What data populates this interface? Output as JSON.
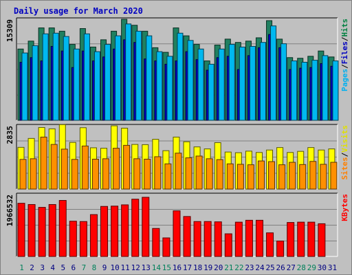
{
  "chart_data": {
    "type": "bar",
    "title": "Daily usage for March 2020",
    "categories": [
      "1",
      "2",
      "3",
      "4",
      "5",
      "6",
      "7",
      "8",
      "9",
      "10",
      "11",
      "12",
      "13",
      "14",
      "15",
      "16",
      "17",
      "18",
      "19",
      "20",
      "21",
      "22",
      "23",
      "24",
      "25",
      "26",
      "27",
      "28",
      "29",
      "30",
      "31"
    ],
    "weekend_days": [
      "1",
      "7",
      "8",
      "14",
      "15",
      "21",
      "22",
      "28",
      "29"
    ],
    "panels": [
      {
        "max_label": "15309",
        "ylim": [
          0,
          15309
        ],
        "legend": [
          {
            "text": "Pages",
            "color": "#00b0f0"
          },
          {
            "text": "/",
            "color": "#000000"
          },
          {
            "text": "Files",
            "color": "#0000c0"
          },
          {
            "text": "/",
            "color": "#000000"
          },
          {
            "text": "Hits",
            "color": "#008040"
          }
        ],
        "series": [
          {
            "name": "Hits",
            "color": "#208060",
            "values": [
              10800,
              12000,
              14000,
              14000,
              13500,
              11500,
              13900,
              11100,
              12200,
              13500,
              15309,
              14400,
              13500,
              11000,
              10300,
              14000,
              12800,
              11500,
              9000,
              11400,
              12300,
              11800,
              12000,
              12500,
              15100,
              12300,
              9500,
              9400,
              9700,
              10500,
              9600
            ]
          },
          {
            "name": "Files",
            "color": "#0000c0",
            "values": [
              8800,
              9500,
              9000,
              11200,
              10500,
              8000,
              10500,
              9000,
              9600,
              10800,
              12200,
              11800,
              9300,
              9000,
              8500,
              9000,
              10400,
              9200,
              7600,
              9500,
              9700,
              7700,
              9800,
              11000,
              13000,
              11000,
              7700,
              7900,
              8000,
              8600,
              8200
            ]
          },
          {
            "name": "Pages",
            "color": "#00b8f0",
            "values": [
              10200,
              11300,
              13100,
              13200,
              12700,
              10800,
              13100,
              10400,
              11500,
              12800,
              14600,
              13500,
              12800,
              10400,
              9700,
              13200,
              12100,
              10800,
              8500,
              10800,
              11500,
              11100,
              11200,
              11800,
              14300,
              11600,
              9000,
              8800,
              9100,
              9800,
              9000
            ]
          }
        ]
      },
      {
        "max_label": "2835",
        "ylim": [
          0,
          2835
        ],
        "legend": [
          {
            "text": "Sites",
            "color": "#ff8000"
          },
          {
            "text": "/",
            "color": "#000000"
          },
          {
            "text": "Visits",
            "color": "#e0e000"
          }
        ],
        "series": [
          {
            "name": "Visits",
            "color": "#ffff00",
            "values": [
              1870,
              2270,
              2760,
              2700,
              2890,
              2090,
              2750,
              1850,
              1830,
              2835,
              2730,
              2000,
              1990,
              2230,
              1720,
              2330,
              2120,
              1890,
              1800,
              2080,
              1660,
              1630,
              1700,
              1640,
              1750,
              1860,
              1640,
              1690,
              1860,
              1750,
              1800
            ]
          },
          {
            "name": "Sites",
            "color": "#ff9000",
            "values": [
              1330,
              1360,
              2330,
              2000,
              1790,
              1330,
              1930,
              1340,
              1360,
              1830,
              1960,
              1360,
              1340,
              1450,
              1130,
              1610,
              1400,
              1480,
              1360,
              1320,
              1130,
              1110,
              1090,
              1260,
              1230,
              1090,
              1200,
              1100,
              1240,
              1110,
              1200
            ]
          }
        ]
      },
      {
        "max_label": "1966532",
        "ylim": [
          0,
          1966532
        ],
        "legend": [
          {
            "text": "KBytes",
            "color": "#ff0000"
          }
        ],
        "series": [
          {
            "name": "KBytes",
            "color": "#ff0000",
            "values": [
              1690000,
              1650000,
              1560000,
              1650000,
              1780000,
              1120000,
              1110000,
              1330000,
              1590000,
              1600000,
              1640000,
              1820000,
              1880000,
              890000,
              590000,
              1450000,
              1270000,
              1110000,
              1110000,
              1100000,
              720000,
              1090000,
              1150000,
              1150000,
              750000,
              490000,
              1080000,
              1090000,
              1090000,
              1040000,
              0
            ]
          }
        ]
      }
    ]
  }
}
